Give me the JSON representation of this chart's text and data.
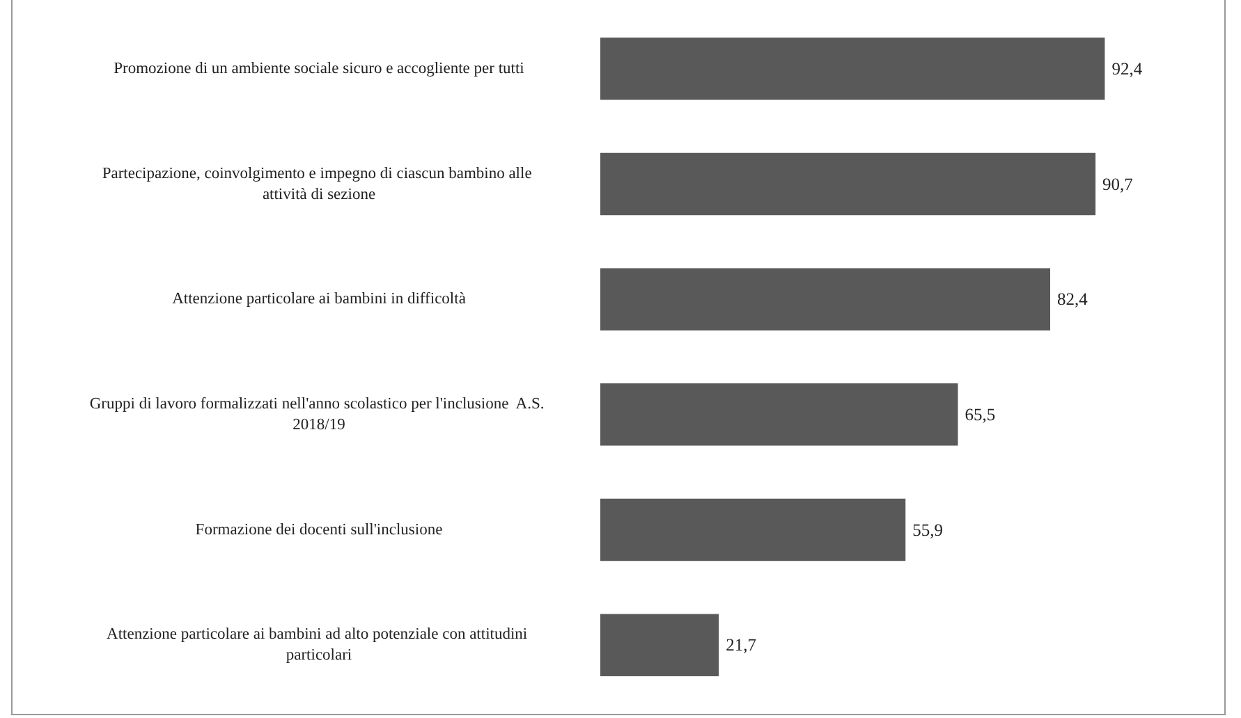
{
  "chart_data": {
    "type": "bar",
    "orientation": "horizontal",
    "categories": [
      "Promozione di un ambiente sociale sicuro e accogliente per tutti",
      "Partecipazione, coinvolgimento e impegno di ciascun bambino alle attività di sezione",
      "Attenzione particolare ai bambini in difficoltà",
      "Gruppi di lavoro formalizzati nell'anno scolastico per l'inclusione  A.S. 2018/19",
      "Formazione dei docenti sull'inclusione",
      "Attenzione particolare ai bambini ad alto potenziale con attitudini particolari"
    ],
    "values": [
      92.4,
      90.7,
      82.4,
      65.5,
      55.9,
      21.7
    ],
    "value_labels": [
      "92,4",
      "90,7",
      "82,4",
      "65,5",
      "55,9",
      "21,7"
    ],
    "color": "#595959",
    "tick_labels": "y"
  }
}
